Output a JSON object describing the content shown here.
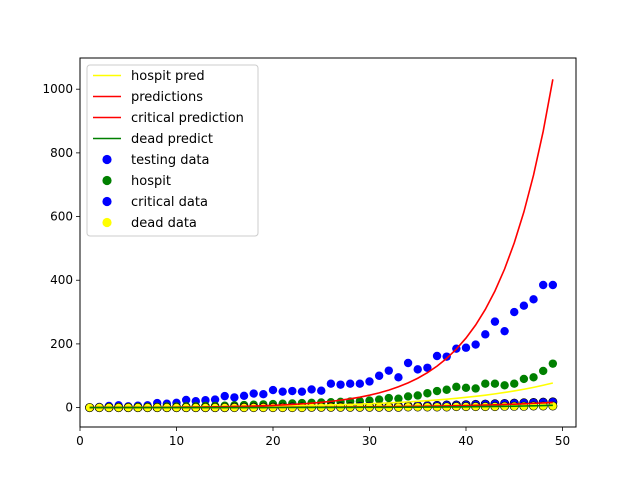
{
  "chart_data": {
    "type": "line+scatter",
    "title": "",
    "xlabel": "",
    "ylabel": "",
    "xlim": [
      0,
      51.4
    ],
    "ylim": [
      -61,
      1098
    ],
    "xticks": [
      0,
      10,
      20,
      30,
      40,
      50
    ],
    "yticks": [
      0,
      200,
      400,
      600,
      800,
      1000
    ],
    "grid": false,
    "legend_position": "top-left",
    "x": [
      1,
      2,
      3,
      4,
      5,
      6,
      7,
      8,
      9,
      10,
      11,
      12,
      13,
      14,
      15,
      16,
      17,
      18,
      19,
      20,
      21,
      22,
      23,
      24,
      25,
      26,
      27,
      28,
      29,
      30,
      31,
      32,
      33,
      34,
      35,
      36,
      37,
      38,
      39,
      40,
      41,
      42,
      43,
      44,
      45,
      46,
      47,
      48,
      49
    ],
    "lines": [
      {
        "name": "hospit pred",
        "color": "#ffff00",
        "model": {
          "a": 0.65,
          "b": 0.0975
        }
      },
      {
        "name": "predictions",
        "color": "#ff0000",
        "model": {
          "a": 0.22,
          "b": 0.1725
        }
      },
      {
        "name": "critical prediction",
        "color": "#ff0000",
        "model": {
          "a": 0.12,
          "b": 0.1
        }
      },
      {
        "name": "dead predict",
        "color": "#008000",
        "model": {
          "a": 0.02,
          "b": 0.12
        }
      }
    ],
    "scatter": [
      {
        "name": "testing data",
        "color": "#0000ff",
        "outline": false,
        "values": [
          0,
          2,
          5,
          7,
          4,
          6,
          7,
          14,
          12,
          15,
          24,
          20,
          23,
          25,
          36,
          32,
          37,
          44,
          42,
          55,
          50,
          52,
          50,
          57,
          53,
          75,
          72,
          75,
          75,
          82,
          100,
          116,
          95,
          140,
          120,
          125,
          162,
          160,
          185,
          188,
          198,
          230,
          270,
          240,
          300,
          320,
          340,
          385,
          385
        ]
      },
      {
        "name": "hospit",
        "color": "#008000",
        "outline": false,
        "values": [
          0,
          0,
          1,
          1,
          1,
          2,
          2,
          2,
          3,
          3,
          4,
          4,
          5,
          5,
          6,
          7,
          8,
          9,
          10,
          11,
          12,
          13,
          14,
          15,
          16,
          17,
          18,
          19,
          20,
          22,
          25,
          30,
          28,
          35,
          38,
          45,
          52,
          56,
          65,
          62,
          60,
          75,
          75,
          70,
          75,
          90,
          95,
          115,
          138
        ]
      },
      {
        "name": "critical data",
        "color": "#0000ff",
        "outline": true,
        "values": [
          0,
          0,
          0,
          0,
          0,
          0,
          0,
          0,
          0,
          0,
          0,
          0,
          0,
          0,
          0,
          1,
          1,
          1,
          1,
          1,
          1,
          2,
          2,
          2,
          2,
          3,
          3,
          3,
          4,
          4,
          4,
          4,
          5,
          5,
          6,
          6,
          7,
          8,
          8,
          9,
          10,
          11,
          12,
          13,
          14,
          15,
          16,
          17,
          18
        ]
      },
      {
        "name": "dead data",
        "color": "#ffff00",
        "outline": true,
        "values": [
          0,
          0,
          0,
          0,
          0,
          0,
          0,
          0,
          0,
          0,
          0,
          0,
          0,
          0,
          0,
          0,
          0,
          0,
          0,
          0,
          0,
          0,
          0,
          1,
          1,
          1,
          1,
          1,
          1,
          1,
          1,
          1,
          1,
          2,
          2,
          2,
          2,
          2,
          3,
          3,
          3,
          3,
          3,
          4,
          4,
          4,
          5,
          5,
          5
        ]
      }
    ],
    "legend": [
      "hospit pred",
      "predictions",
      "critical prediction",
      "dead predict",
      "testing data",
      "hospit",
      "critical data",
      "dead data"
    ]
  }
}
